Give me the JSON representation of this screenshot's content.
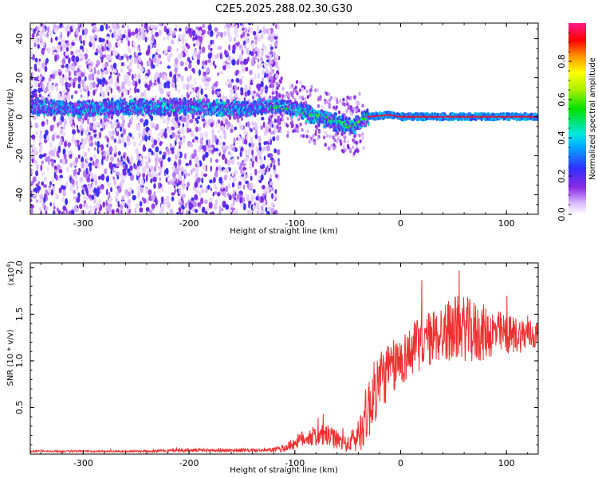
{
  "title": "C2E5.2025.288.02.30.G30",
  "chart_data": [
    {
      "type": "heatmap",
      "xlabel": "Height of straight line (km)",
      "ylabel": "Frequency (Hz)",
      "xlim": [
        -350,
        130
      ],
      "ylim": [
        -50,
        48
      ],
      "x_ticks": [
        -300,
        -200,
        -100,
        0,
        100
      ],
      "x_tick_labels": [
        "-300",
        "-200",
        "-100",
        "0",
        "100"
      ],
      "y_ticks": [
        -40,
        -20,
        0,
        20,
        40
      ],
      "y_tick_labels": [
        "-40",
        "-20",
        "0",
        "20",
        "40"
      ],
      "colorbar": {
        "label": "Normalized spectral amplitude",
        "range": [
          0,
          1
        ],
        "ticks": [
          0.0,
          0.2,
          0.4,
          0.6,
          0.8
        ],
        "tick_labels": [
          "0.0",
          "0.2",
          "0.4",
          "0.6",
          "0.8"
        ],
        "colormap": "rainbow (white-violet-blue-cyan-green-yellow-orange-red-magenta)"
      },
      "features": {
        "noise_region_x": [
          -350,
          -125
        ],
        "trace_points": [
          [
            -350,
            5
          ],
          [
            -300,
            4
          ],
          [
            -250,
            5
          ],
          [
            -200,
            5
          ],
          [
            -150,
            4
          ],
          [
            -120,
            6
          ],
          [
            -100,
            4
          ],
          [
            -80,
            0
          ],
          [
            -60,
            -3
          ],
          [
            -45,
            -5
          ],
          [
            -30,
            0
          ],
          [
            -10,
            1
          ],
          [
            0,
            0
          ],
          [
            50,
            0
          ],
          [
            100,
            0
          ],
          [
            130,
            0
          ]
        ],
        "trace_peak_amplitude": 0.95
      }
    },
    {
      "type": "line",
      "xlabel": "Height of straight line (km)",
      "ylabel": "SNR (10 * v/v)",
      "multiplier_label": "(x10",
      "multiplier_exponent": "4",
      "xlim": [
        -350,
        130
      ],
      "ylim": [
        0,
        2.05
      ],
      "x_ticks": [
        -300,
        -200,
        -100,
        0,
        100
      ],
      "x_tick_labels": [
        "-300",
        "-200",
        "-100",
        "0",
        "100"
      ],
      "y_ticks": [
        0.5,
        1.0,
        1.5,
        2.0
      ],
      "y_tick_labels": [
        "0.5",
        "1.0",
        "1.5",
        "2.0"
      ],
      "color": "#f03030",
      "series_envelope": {
        "x": [
          -350,
          -300,
          -250,
          -200,
          -150,
          -125,
          -110,
          -90,
          -70,
          -60,
          -50,
          -40,
          -30,
          -20,
          -10,
          0,
          10,
          20,
          30,
          40,
          50,
          60,
          70,
          80,
          90,
          100,
          110,
          120,
          130
        ],
        "mean": [
          0.03,
          0.03,
          0.03,
          0.04,
          0.04,
          0.04,
          0.06,
          0.18,
          0.2,
          0.15,
          0.1,
          0.2,
          0.5,
          0.8,
          0.9,
          1.0,
          1.1,
          1.2,
          1.25,
          1.3,
          1.35,
          1.35,
          1.3,
          1.3,
          1.3,
          1.28,
          1.28,
          1.28,
          1.27
        ],
        "spread": [
          0.01,
          0.01,
          0.01,
          0.02,
          0.02,
          0.02,
          0.04,
          0.1,
          0.12,
          0.1,
          0.08,
          0.2,
          0.35,
          0.35,
          0.3,
          0.28,
          0.28,
          0.3,
          0.3,
          0.32,
          0.35,
          0.35,
          0.35,
          0.3,
          0.25,
          0.22,
          0.2,
          0.18,
          0.15
        ]
      }
    }
  ]
}
